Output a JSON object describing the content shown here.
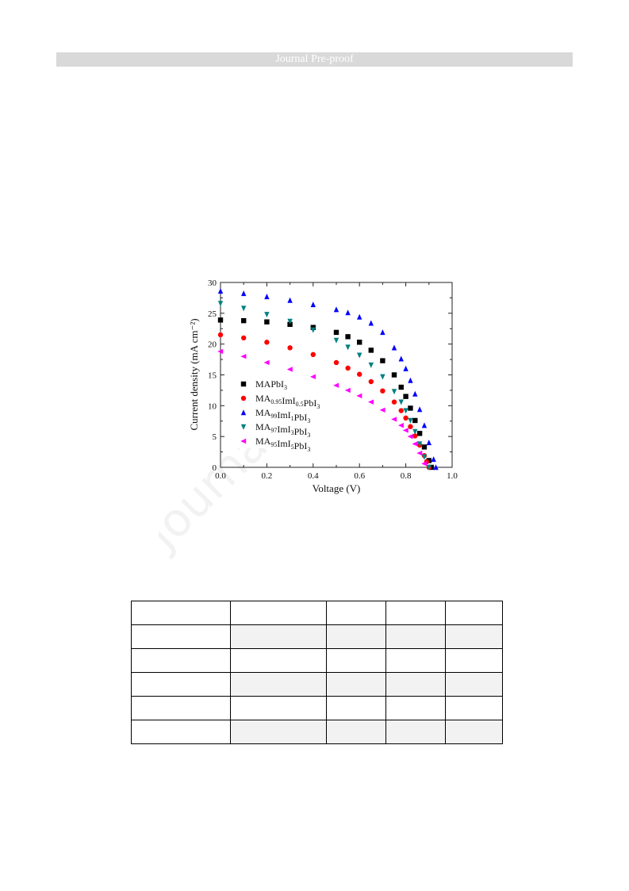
{
  "header": {
    "banner_text": "Journal Pre-proof"
  },
  "watermark_text": "Journal Pre-proof",
  "chart_data": {
    "type": "scatter",
    "xlabel": "Voltage (V)",
    "ylabel": "Current density (mA cm⁻²)",
    "xlim": [
      0.0,
      1.0
    ],
    "ylim": [
      0,
      30
    ],
    "xticks": [
      0.0,
      0.2,
      0.4,
      0.6,
      0.8,
      1.0
    ],
    "xtick_labels": [
      "0.0",
      "0.2",
      "0.4",
      "0.6",
      "0.8",
      "1.0"
    ],
    "yticks": [
      0,
      5,
      10,
      15,
      20,
      25,
      30
    ],
    "ytick_labels": [
      "0",
      "5",
      "10",
      "15",
      "20",
      "25",
      "30"
    ],
    "grid": false,
    "legend_position": "lower-left",
    "series": [
      {
        "name": "MAPbI3",
        "legend": {
          "parts": [
            [
              "MAPbI",
              ""
            ],
            [
              "3",
              "sub"
            ]
          ]
        },
        "marker": "square",
        "color": "#000000",
        "x": [
          0.0,
          0.1,
          0.2,
          0.3,
          0.4,
          0.5,
          0.55,
          0.6,
          0.65,
          0.7,
          0.75,
          0.78,
          0.8,
          0.82,
          0.84,
          0.86,
          0.88,
          0.9,
          0.91
        ],
        "y": [
          23.9,
          23.8,
          23.6,
          23.2,
          22.7,
          21.9,
          21.2,
          20.3,
          19.0,
          17.3,
          15.0,
          13.0,
          11.5,
          9.6,
          7.6,
          5.5,
          3.3,
          1.1,
          0.0
        ]
      },
      {
        "name": "MA0.95ImI0.5PbI3",
        "legend": {
          "parts": [
            [
              "MA",
              ""
            ],
            [
              "0.95",
              "sub"
            ],
            [
              "ImI",
              ""
            ],
            [
              "0.5",
              "sub"
            ],
            [
              "PbI",
              ""
            ],
            [
              "3",
              "sub"
            ]
          ]
        },
        "marker": "circle",
        "color": "#ff0000",
        "x": [
          0.0,
          0.1,
          0.2,
          0.3,
          0.4,
          0.5,
          0.55,
          0.6,
          0.65,
          0.7,
          0.75,
          0.78,
          0.8,
          0.82,
          0.84,
          0.86,
          0.88,
          0.89,
          0.9
        ],
        "y": [
          21.5,
          21.0,
          20.3,
          19.4,
          18.3,
          17.0,
          16.1,
          15.1,
          13.9,
          12.4,
          10.6,
          9.2,
          8.0,
          6.6,
          5.1,
          3.6,
          1.9,
          0.9,
          0.0
        ]
      },
      {
        "name": "MA99ImI1PbI3",
        "legend": {
          "parts": [
            [
              "MA",
              ""
            ],
            [
              "99",
              "sub"
            ],
            [
              "ImI",
              ""
            ],
            [
              "1",
              "sub"
            ],
            [
              "PbI",
              ""
            ],
            [
              "3",
              "sub"
            ]
          ]
        },
        "marker": "triangle-up",
        "color": "#0000ff",
        "x": [
          0.0,
          0.1,
          0.2,
          0.3,
          0.4,
          0.5,
          0.55,
          0.6,
          0.65,
          0.7,
          0.75,
          0.78,
          0.8,
          0.82,
          0.84,
          0.86,
          0.88,
          0.9,
          0.92,
          0.93
        ],
        "y": [
          28.6,
          28.2,
          27.7,
          27.1,
          26.4,
          25.6,
          25.1,
          24.4,
          23.4,
          21.9,
          19.4,
          17.6,
          16.0,
          14.1,
          11.9,
          9.4,
          6.8,
          4.0,
          1.3,
          0.0
        ]
      },
      {
        "name": "MA97ImI3PbI3",
        "legend": {
          "parts": [
            [
              "MA",
              ""
            ],
            [
              "97",
              "sub"
            ],
            [
              "ImI",
              ""
            ],
            [
              "3",
              "sub"
            ],
            [
              "PbI",
              ""
            ],
            [
              "3",
              "sub"
            ]
          ]
        },
        "marker": "triangle-down",
        "color": "#008080",
        "x": [
          0.0,
          0.1,
          0.2,
          0.3,
          0.4,
          0.5,
          0.55,
          0.6,
          0.65,
          0.7,
          0.75,
          0.78,
          0.8,
          0.82,
          0.84,
          0.86,
          0.88,
          0.9
        ],
        "y": [
          26.6,
          25.8,
          24.8,
          23.7,
          22.3,
          20.6,
          19.5,
          18.2,
          16.6,
          14.7,
          12.3,
          10.6,
          9.2,
          7.6,
          5.8,
          3.8,
          1.7,
          0.0
        ]
      },
      {
        "name": "MA95ImI5PbI3",
        "legend": {
          "parts": [
            [
              "MA",
              ""
            ],
            [
              "95",
              "sub"
            ],
            [
              "ImI",
              ""
            ],
            [
              "5",
              "sub"
            ],
            [
              "PbI",
              ""
            ],
            [
              "3",
              "sub"
            ]
          ]
        },
        "marker": "triangle-left",
        "color": "#ff00ff",
        "x": [
          0.0,
          0.1,
          0.2,
          0.3,
          0.4,
          0.5,
          0.55,
          0.6,
          0.65,
          0.7,
          0.75,
          0.78,
          0.8,
          0.82,
          0.84,
          0.86,
          0.88
        ],
        "y": [
          18.8,
          18.0,
          17.0,
          15.9,
          14.7,
          13.3,
          12.5,
          11.6,
          10.6,
          9.3,
          7.8,
          6.8,
          6.0,
          5.0,
          3.8,
          2.3,
          0.6
        ]
      }
    ]
  },
  "table": {
    "rows": [
      [
        "",
        "",
        "",
        "",
        ""
      ],
      [
        "",
        "",
        "",
        "",
        ""
      ],
      [
        "",
        "",
        "",
        "",
        ""
      ],
      [
        "",
        "",
        "",
        "",
        ""
      ],
      [
        "",
        "",
        "",
        "",
        ""
      ],
      [
        "",
        "",
        "",
        "",
        ""
      ]
    ]
  }
}
